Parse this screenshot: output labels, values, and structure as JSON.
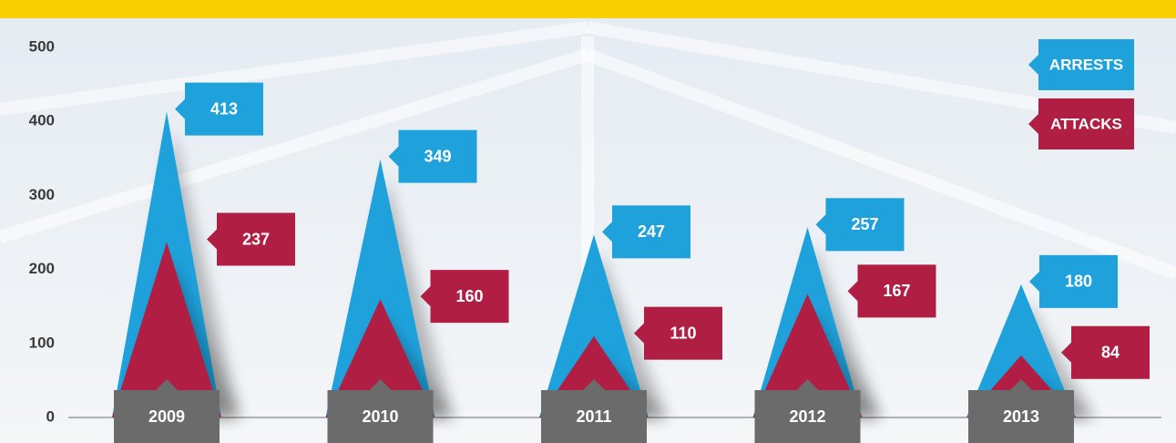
{
  "chart_data": {
    "type": "pyramid",
    "categories": [
      "2009",
      "2010",
      "2011",
      "2012",
      "2013"
    ],
    "series": [
      {
        "name": "ARRESTS",
        "color": "#1fa2dc",
        "values": [
          413,
          349,
          247,
          257,
          180
        ]
      },
      {
        "name": "ATTACKS",
        "color": "#b01f43",
        "values": [
          237,
          160,
          110,
          167,
          84
        ]
      }
    ],
    "ylim": [
      0,
      500
    ],
    "yticks": [
      0,
      100,
      200,
      300,
      400,
      500
    ],
    "grid": false
  }
}
